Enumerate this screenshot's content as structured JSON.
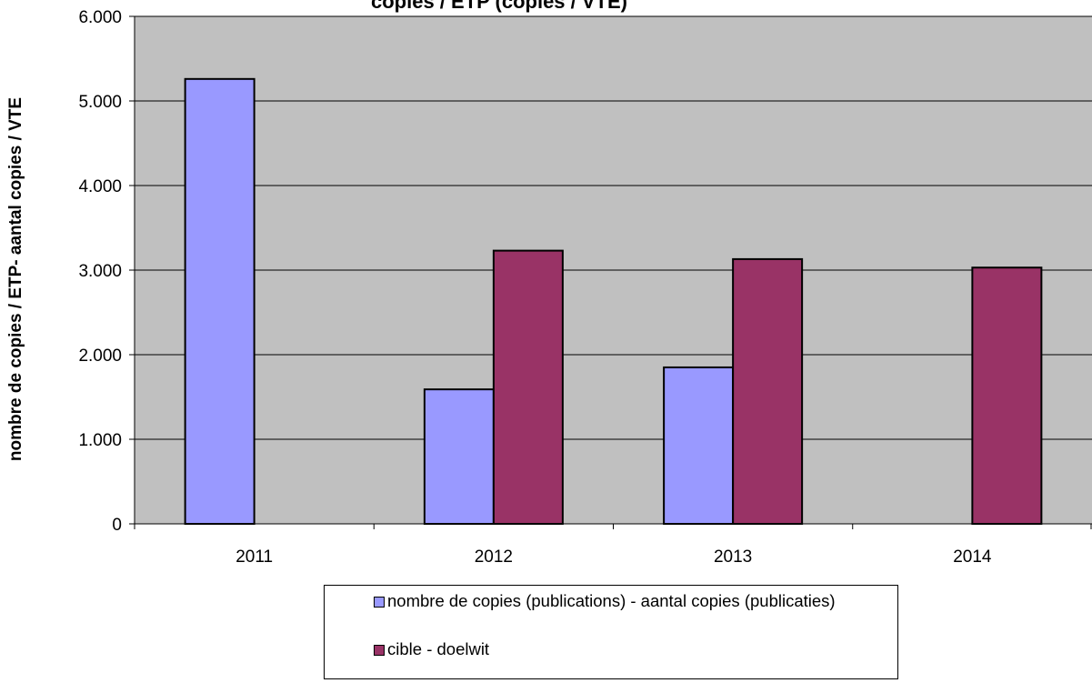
{
  "chart_data": {
    "type": "bar",
    "title": "copies / ETP (copies / VTE)",
    "ylabel": "nombre de copies / ETP- aantal copies / VTE",
    "xlabel": "",
    "categories": [
      "2011",
      "2012",
      "2013",
      "2014"
    ],
    "ylim": [
      0,
      6000
    ],
    "yticks": [
      0,
      1000,
      2000,
      3000,
      4000,
      5000,
      6000
    ],
    "ytick_labels": [
      "0",
      "1.000",
      "2.000",
      "3.000",
      "4.000",
      "5.000",
      "6.000"
    ],
    "grid": true,
    "legend_position": "bottom",
    "plot_background": "#c0c0c0",
    "series": [
      {
        "name": "nombre de copies (publications)  -  aantal copies (publicaties)",
        "color": "#9999ff",
        "values": [
          5260,
          1590,
          1850,
          null
        ]
      },
      {
        "name": "cible - doelwit",
        "color": "#993366",
        "values": [
          null,
          3230,
          3130,
          3030
        ]
      }
    ]
  }
}
